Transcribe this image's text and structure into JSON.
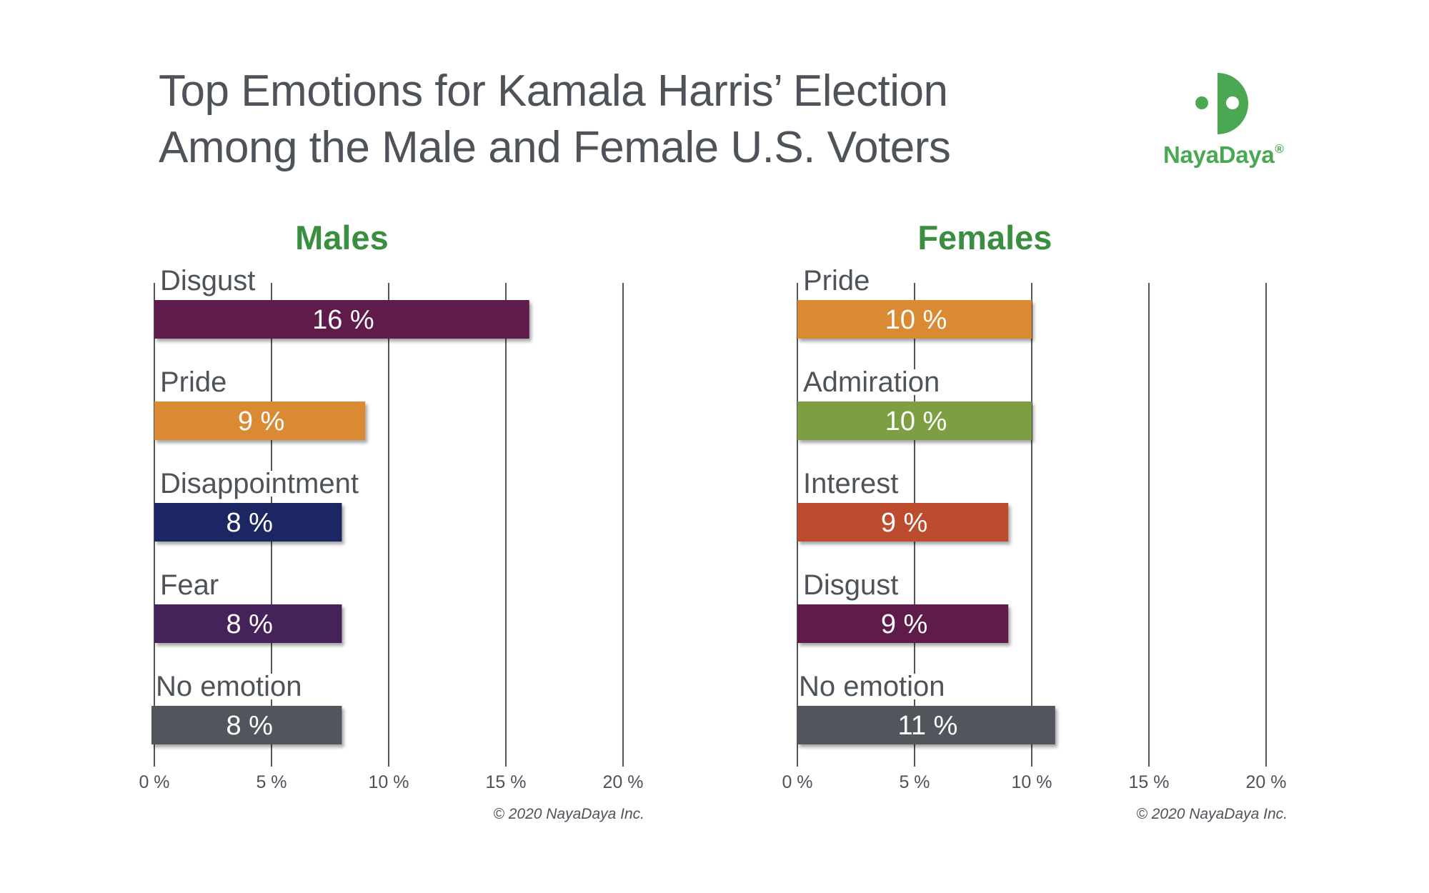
{
  "title_lines": [
    "Top Emotions for Kamala Harris’ Election",
    "Among the Male and Female U.S. Voters"
  ],
  "logo": {
    "icon": "nayadaya-face-icon",
    "text": "NayaDaya",
    "registered_mark": "®",
    "color": "#4aa852"
  },
  "chart_data": [
    {
      "type": "bar",
      "orientation": "horizontal",
      "title": "Males",
      "categories": [
        "Disgust",
        "Pride",
        "Disappointment",
        "Fear",
        "No emotion"
      ],
      "values": [
        16,
        9,
        8,
        8,
        8
      ],
      "value_labels": [
        "16 %",
        "9 %",
        "8 %",
        "8 %",
        "8 %"
      ],
      "colors": [
        "#5e1c4c",
        "#d98a33",
        "#1c2864",
        "#44215a",
        "#51565d"
      ],
      "xlabel": "",
      "ylabel": "",
      "xlim": [
        0,
        20
      ],
      "x_ticks": [
        0,
        5,
        10,
        15,
        20
      ],
      "x_tick_labels": [
        "0 %",
        "5 %",
        "10 %",
        "15 %",
        "20 %"
      ],
      "grid": true,
      "footnote": "© 2020 NayaDaya Inc."
    },
    {
      "type": "bar",
      "orientation": "horizontal",
      "title": "Females",
      "categories": [
        "Pride",
        "Admiration",
        "Interest",
        "Disgust",
        "No emotion"
      ],
      "values": [
        10,
        10,
        9,
        9,
        11
      ],
      "value_labels": [
        "10 %",
        "10 %",
        "9 %",
        "9 %",
        "11 %"
      ],
      "colors": [
        "#d98a33",
        "#7d9e42",
        "#bd4c2e",
        "#5e1c4c",
        "#51565d"
      ],
      "xlabel": "",
      "ylabel": "",
      "xlim": [
        0,
        20
      ],
      "x_ticks": [
        0,
        5,
        10,
        15,
        20
      ],
      "x_tick_labels": [
        "0 %",
        "5 %",
        "10 %",
        "15 %",
        "20 %"
      ],
      "grid": true,
      "footnote": "© 2020 NayaDaya Inc."
    }
  ]
}
